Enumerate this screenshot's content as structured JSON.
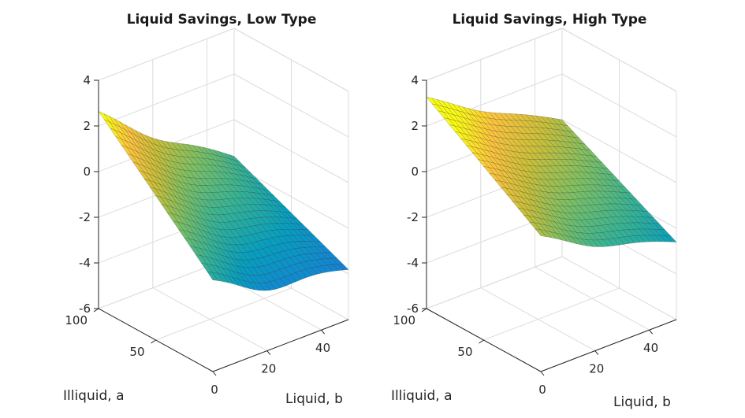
{
  "chart_data": [
    {
      "type": "surface",
      "title": "Liquid Savings, Low Type",
      "xlabel": "Liquid, b",
      "ylabel": "Illiquid, a",
      "zlabel": "",
      "xlim": [
        0,
        50
      ],
      "ylim": [
        0,
        100
      ],
      "zlim": [
        -6,
        4
      ],
      "xticks": [
        0,
        20,
        40
      ],
      "yticks": [
        50,
        100
      ],
      "zticks": [
        -6,
        -4,
        -2,
        0,
        2,
        4
      ],
      "grid": true,
      "colormap": "parula",
      "corner_values": {
        "b0_a100": 2.7,
        "b0_a0": -1.9,
        "b50_a0": -3.8,
        "b50_a100": -1.6
      },
      "min_value": -4.5
    },
    {
      "type": "surface",
      "title": "Liquid Savings, High Type",
      "xlabel": "Liquid, b",
      "ylabel": "Illiquid, a",
      "zlabel": "",
      "xlim": [
        0,
        50
      ],
      "ylim": [
        0,
        100
      ],
      "zlim": [
        -6,
        4
      ],
      "xticks": [
        0,
        20,
        40
      ],
      "yticks": [
        50,
        100
      ],
      "zticks": [
        -6,
        -4,
        -2,
        0,
        2,
        4
      ],
      "grid": true,
      "colormap": "parula",
      "corner_values": {
        "b0_a100": 3.3,
        "b0_a0": 0.0,
        "b50_a0": -2.6,
        "b50_a100": 0.0
      },
      "min_value": -3.0
    }
  ]
}
